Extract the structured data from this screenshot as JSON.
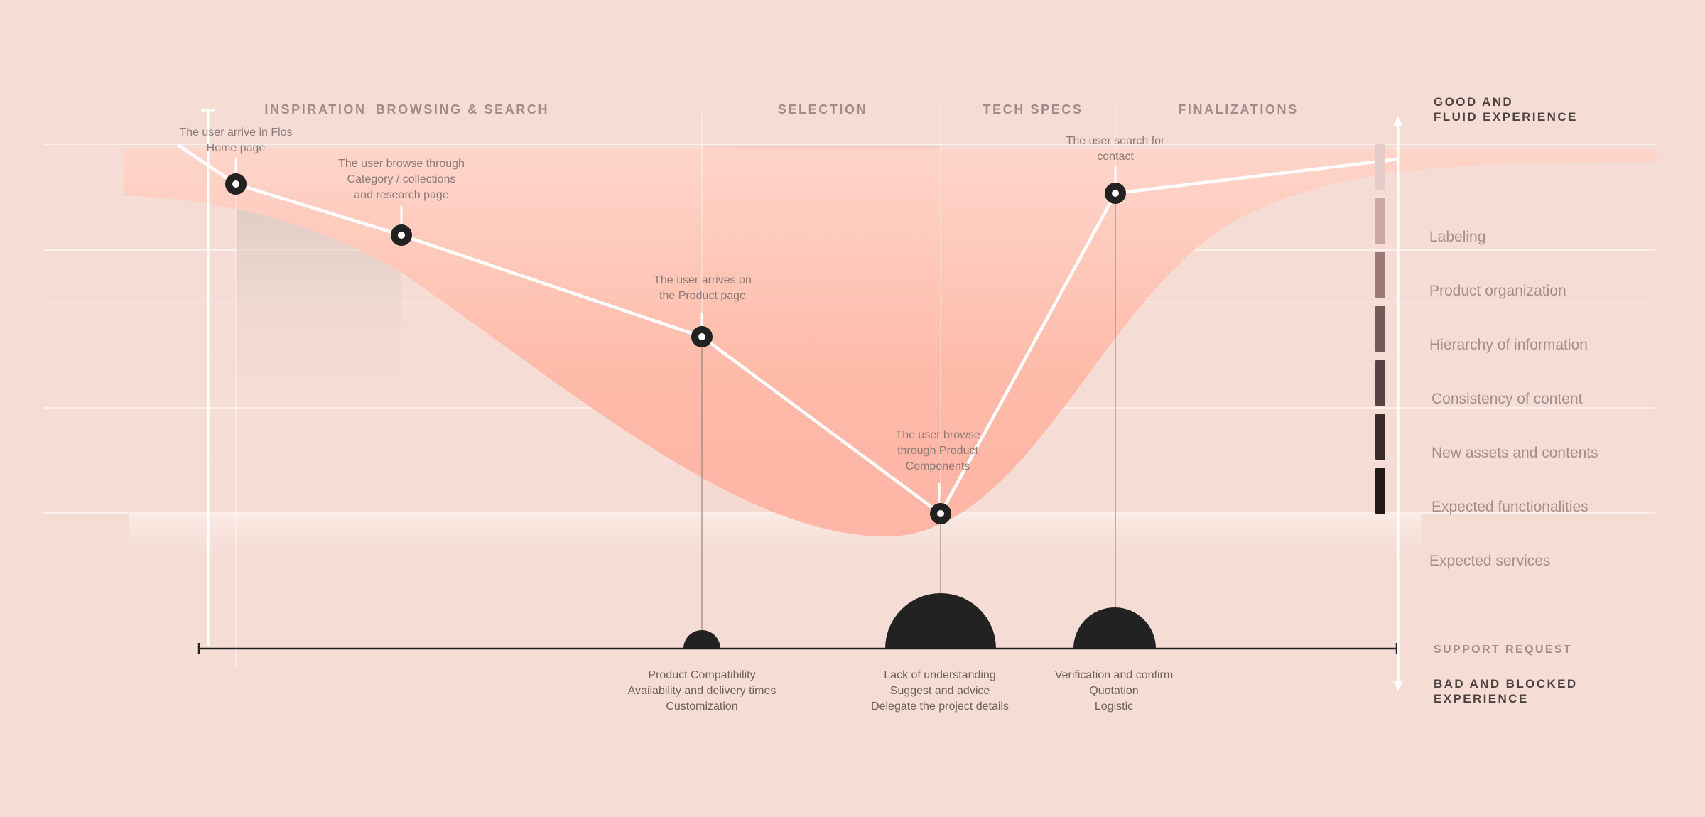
{
  "phases": [
    {
      "label": "INSPIRATION"
    },
    {
      "label": "BROWSING & SEARCH"
    },
    {
      "label": "SELECTION"
    },
    {
      "label": "TECH SPECS"
    },
    {
      "label": "FINALIZATIONS"
    }
  ],
  "journey_points": [
    {
      "lines": [
        "The user arrive in Flos",
        "Home page"
      ]
    },
    {
      "lines": [
        "The user browse through",
        "Category / collections",
        "and research page"
      ]
    },
    {
      "lines": [
        "The user arrives on",
        "the Product page"
      ]
    },
    {
      "lines": [
        "The user browse",
        "through Product",
        "Components"
      ]
    },
    {
      "lines": [
        "The user search for",
        "contact"
      ]
    }
  ],
  "support_issues": [
    {
      "size": "small",
      "lines": [
        "Product Compatibility",
        "Availability and delivery times",
        "Customization"
      ]
    },
    {
      "size": "large",
      "lines": [
        "Lack of understanding",
        "Suggest and advice",
        "Delegate the project details"
      ]
    },
    {
      "size": "medium",
      "lines": [
        "Verification and confirm",
        "Quotation",
        "Logistic"
      ]
    }
  ],
  "scale": {
    "top_label": [
      "GOOD AND",
      "FLUID EXPERIENCE"
    ],
    "bottom_label": [
      "BAD AND BLOCKED",
      "EXPERIENCE"
    ],
    "support_label": "SUPPORT REQUEST",
    "levels": [
      {
        "label": "Labeling",
        "color": "#c9a8a3"
      },
      {
        "label": "Product organization",
        "color": "#9a7a76"
      },
      {
        "label": "Hierarchy of information",
        "color": "#735a57"
      },
      {
        "label": "Consistency of content",
        "color": "#574240"
      },
      {
        "label": "New assets and contents",
        "color": "#3a2b29"
      },
      {
        "label": "Expected functionalities",
        "color": "#221a19"
      },
      {
        "label": "Expected services",
        "color": ""
      }
    ],
    "top_swatch_color": "#e6ccc8"
  },
  "colors": {
    "background": "#f5ddd5",
    "band": "#ffb3a3",
    "journey_line": "#ffffff",
    "marker": "#222222"
  }
}
